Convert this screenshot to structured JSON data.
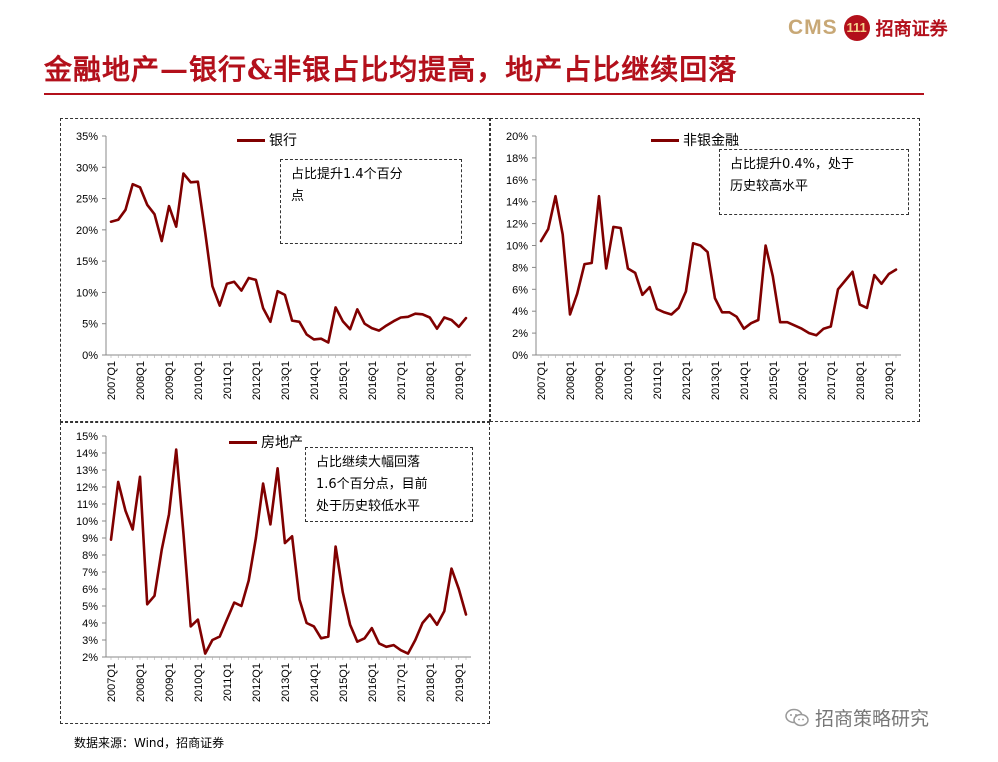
{
  "header": {
    "logo_en": "CMS",
    "logo_mark": "111",
    "logo_cn": "招商证券",
    "title": "金融地产—银行&非银占比均提高，地产占比继续回落"
  },
  "footer": {
    "source": "数据来源：Wind，招商证券",
    "watermark": "招商策略研究"
  },
  "colors": {
    "series": "#800000",
    "brand_red": "#b3101b",
    "logo_gold": "#c8a876"
  },
  "chart_data": [
    {
      "type": "line",
      "legend": "银行",
      "annotation": [
        "占比提升1.4个百分",
        "点"
      ],
      "ylim": [
        0,
        35
      ],
      "yticks": [
        "0%",
        "5%",
        "10%",
        "15%",
        "20%",
        "25%",
        "30%",
        "35%"
      ],
      "xticks": [
        "2007Q1",
        "2008Q1",
        "2009Q1",
        "2010Q1",
        "2011Q1",
        "2012Q1",
        "2013Q1",
        "2014Q1",
        "2015Q1",
        "2016Q1",
        "2017Q1",
        "2018Q1",
        "2019Q1"
      ],
      "values": [
        21.3,
        21.6,
        23.2,
        27.3,
        26.8,
        24.0,
        22.5,
        18.2,
        23.8,
        20.5,
        29.0,
        27.6,
        27.7,
        19.6,
        11.0,
        7.9,
        11.4,
        11.7,
        10.3,
        12.3,
        12.0,
        7.5,
        5.3,
        10.2,
        9.6,
        5.5,
        5.3,
        3.3,
        2.5,
        2.6,
        2.0,
        7.6,
        5.4,
        4.1,
        7.3,
        5.0,
        4.3,
        3.9,
        4.7,
        5.4,
        6.0,
        6.1,
        6.6,
        6.5,
        6.0,
        4.2,
        6.0,
        5.6,
        4.5,
        5.9
      ]
    },
    {
      "type": "line",
      "legend": "非银金融",
      "annotation": [
        "占比提升0.4%，处于",
        "历史较高水平"
      ],
      "ylim": [
        0,
        20
      ],
      "yticks": [
        "0%",
        "2%",
        "4%",
        "6%",
        "8%",
        "10%",
        "12%",
        "14%",
        "16%",
        "18%",
        "20%"
      ],
      "xticks": [
        "2007Q1",
        "2008Q1",
        "2009Q1",
        "2010Q1",
        "2011Q1",
        "2012Q1",
        "2013Q1",
        "2014Q1",
        "2015Q1",
        "2016Q1",
        "2017Q1",
        "2018Q1",
        "2019Q1"
      ],
      "values": [
        10.4,
        11.5,
        14.5,
        11.0,
        3.7,
        5.6,
        8.3,
        8.4,
        14.5,
        7.9,
        11.7,
        11.6,
        7.9,
        7.5,
        5.5,
        6.2,
        4.2,
        3.9,
        3.7,
        4.3,
        5.8,
        10.2,
        10.0,
        9.4,
        5.2,
        3.9,
        3.9,
        3.5,
        2.4,
        2.9,
        3.2,
        10.0,
        7.2,
        3.0,
        3.0,
        2.7,
        2.4,
        2.0,
        1.8,
        2.4,
        2.6,
        6.0,
        6.8,
        7.6,
        4.6,
        4.3,
        7.3,
        6.5,
        7.4,
        7.8
      ]
    },
    {
      "type": "line",
      "legend": "房地产",
      "annotation": [
        "占比继续大幅回落",
        "1.6个百分点，目前",
        "处于历史较低水平"
      ],
      "ylim": [
        2,
        15
      ],
      "yticks": [
        "2%",
        "3%",
        "4%",
        "5%",
        "6%",
        "7%",
        "8%",
        "9%",
        "10%",
        "11%",
        "12%",
        "13%",
        "14%",
        "15%"
      ],
      "xticks": [
        "2007Q1",
        "2008Q1",
        "2009Q1",
        "2010Q1",
        "2011Q1",
        "2012Q1",
        "2013Q1",
        "2014Q1",
        "2015Q1",
        "2016Q1",
        "2017Q1",
        "2018Q1",
        "2019Q1"
      ],
      "values": [
        8.9,
        12.3,
        10.6,
        9.5,
        12.6,
        5.1,
        5.6,
        8.3,
        10.4,
        14.2,
        9.3,
        3.8,
        4.2,
        2.2,
        3.0,
        3.2,
        4.2,
        5.2,
        5.0,
        6.5,
        9.0,
        12.2,
        9.8,
        13.1,
        8.7,
        9.1,
        5.4,
        4.0,
        3.8,
        3.1,
        3.2,
        8.5,
        5.8,
        3.9,
        2.9,
        3.1,
        3.7,
        2.8,
        2.6,
        2.7,
        2.4,
        2.2,
        3.0,
        4.0,
        4.5,
        3.9,
        4.7,
        7.2,
        6.0,
        4.5
      ]
    }
  ]
}
